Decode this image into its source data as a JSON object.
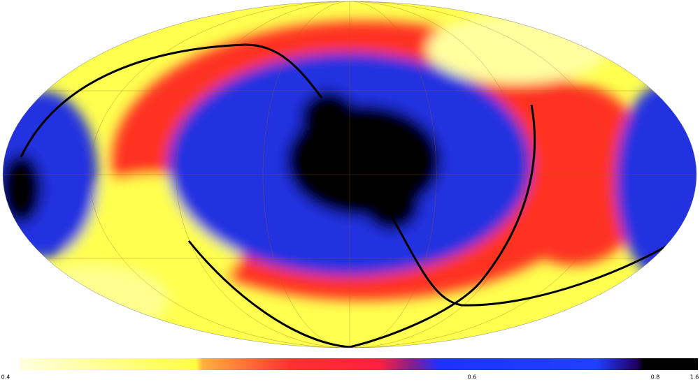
{
  "colorbar": {
    "ticks": [
      0.4,
      0.6,
      0.8,
      1.6
    ]
  }
}
